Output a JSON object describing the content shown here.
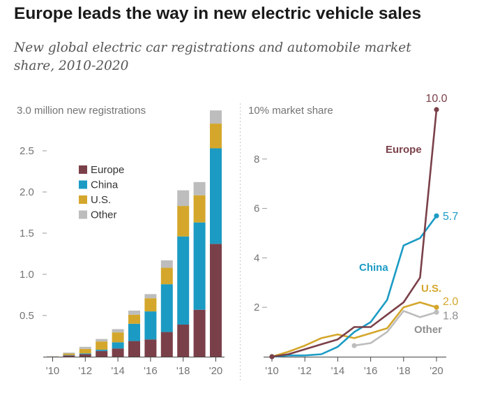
{
  "title": "Europe leads the way in new electric vehicle sales",
  "subtitle": "New global electric car registrations and automobile market share, 2010-2020",
  "colors": {
    "Europe": "#7a4049",
    "China": "#1b9bc4",
    "U.S.": "#d4a72c",
    "Other": "#bdbdbd"
  },
  "chart_data": [
    {
      "type": "bar",
      "stacked": true,
      "ylabel": "3.0 million new registrations",
      "ylim": [
        0,
        3.0
      ],
      "y_ticks": [
        "0.5",
        "1.0",
        "1.5",
        "2.0",
        "2.5"
      ],
      "x": [
        2010,
        2011,
        2012,
        2013,
        2014,
        2015,
        2016,
        2017,
        2018,
        2019,
        2020
      ],
      "x_tick_labels": [
        "'10",
        "'12",
        "'14",
        "'16",
        "'18",
        "'20"
      ],
      "x_tick_years": [
        2010,
        2012,
        2014,
        2016,
        2018,
        2020
      ],
      "legend": "top-left",
      "series": [
        {
          "name": "Europe",
          "values": [
            0.002,
            0.015,
            0.03,
            0.07,
            0.1,
            0.19,
            0.21,
            0.3,
            0.39,
            0.57,
            1.37
          ]
        },
        {
          "name": "China",
          "values": [
            0.0,
            0.005,
            0.01,
            0.015,
            0.075,
            0.21,
            0.34,
            0.58,
            1.07,
            1.06,
            1.16
          ]
        },
        {
          "name": "U.S.",
          "values": [
            0.001,
            0.018,
            0.055,
            0.1,
            0.12,
            0.11,
            0.16,
            0.2,
            0.37,
            0.33,
            0.3
          ]
        },
        {
          "name": "Other",
          "values": [
            0.002,
            0.012,
            0.025,
            0.03,
            0.04,
            0.05,
            0.05,
            0.09,
            0.19,
            0.16,
            0.16
          ]
        }
      ]
    },
    {
      "type": "line",
      "ylabel": "10% market share",
      "ylim": [
        0,
        10
      ],
      "y_ticks": [
        "2",
        "4",
        "6",
        "8"
      ],
      "x": [
        2010,
        2011,
        2012,
        2013,
        2014,
        2015,
        2016,
        2017,
        2018,
        2019,
        2020
      ],
      "x_tick_labels": [
        "'10",
        "'12",
        "'14",
        "'16",
        "'18",
        "'20"
      ],
      "x_tick_years": [
        2010,
        2012,
        2014,
        2016,
        2018,
        2020
      ],
      "series": [
        {
          "name": "Europe",
          "values": [
            0.0,
            0.1,
            0.3,
            0.5,
            0.7,
            1.2,
            1.2,
            1.7,
            2.2,
            3.2,
            10.0
          ],
          "end_label": "10.0"
        },
        {
          "name": "China",
          "values": [
            0.0,
            0.05,
            0.05,
            0.1,
            0.4,
            1.0,
            1.4,
            2.3,
            4.5,
            4.8,
            5.7
          ],
          "end_label": "5.7"
        },
        {
          "name": "U.S.",
          "values": [
            0.0,
            0.2,
            0.45,
            0.75,
            0.9,
            0.75,
            0.95,
            1.15,
            2.0,
            2.2,
            2.0
          ],
          "end_label": "2.0"
        },
        {
          "name": "Other",
          "values": [
            null,
            null,
            null,
            null,
            null,
            0.45,
            0.55,
            1.0,
            1.85,
            1.6,
            1.8
          ],
          "end_label": "1.8"
        }
      ]
    }
  ]
}
